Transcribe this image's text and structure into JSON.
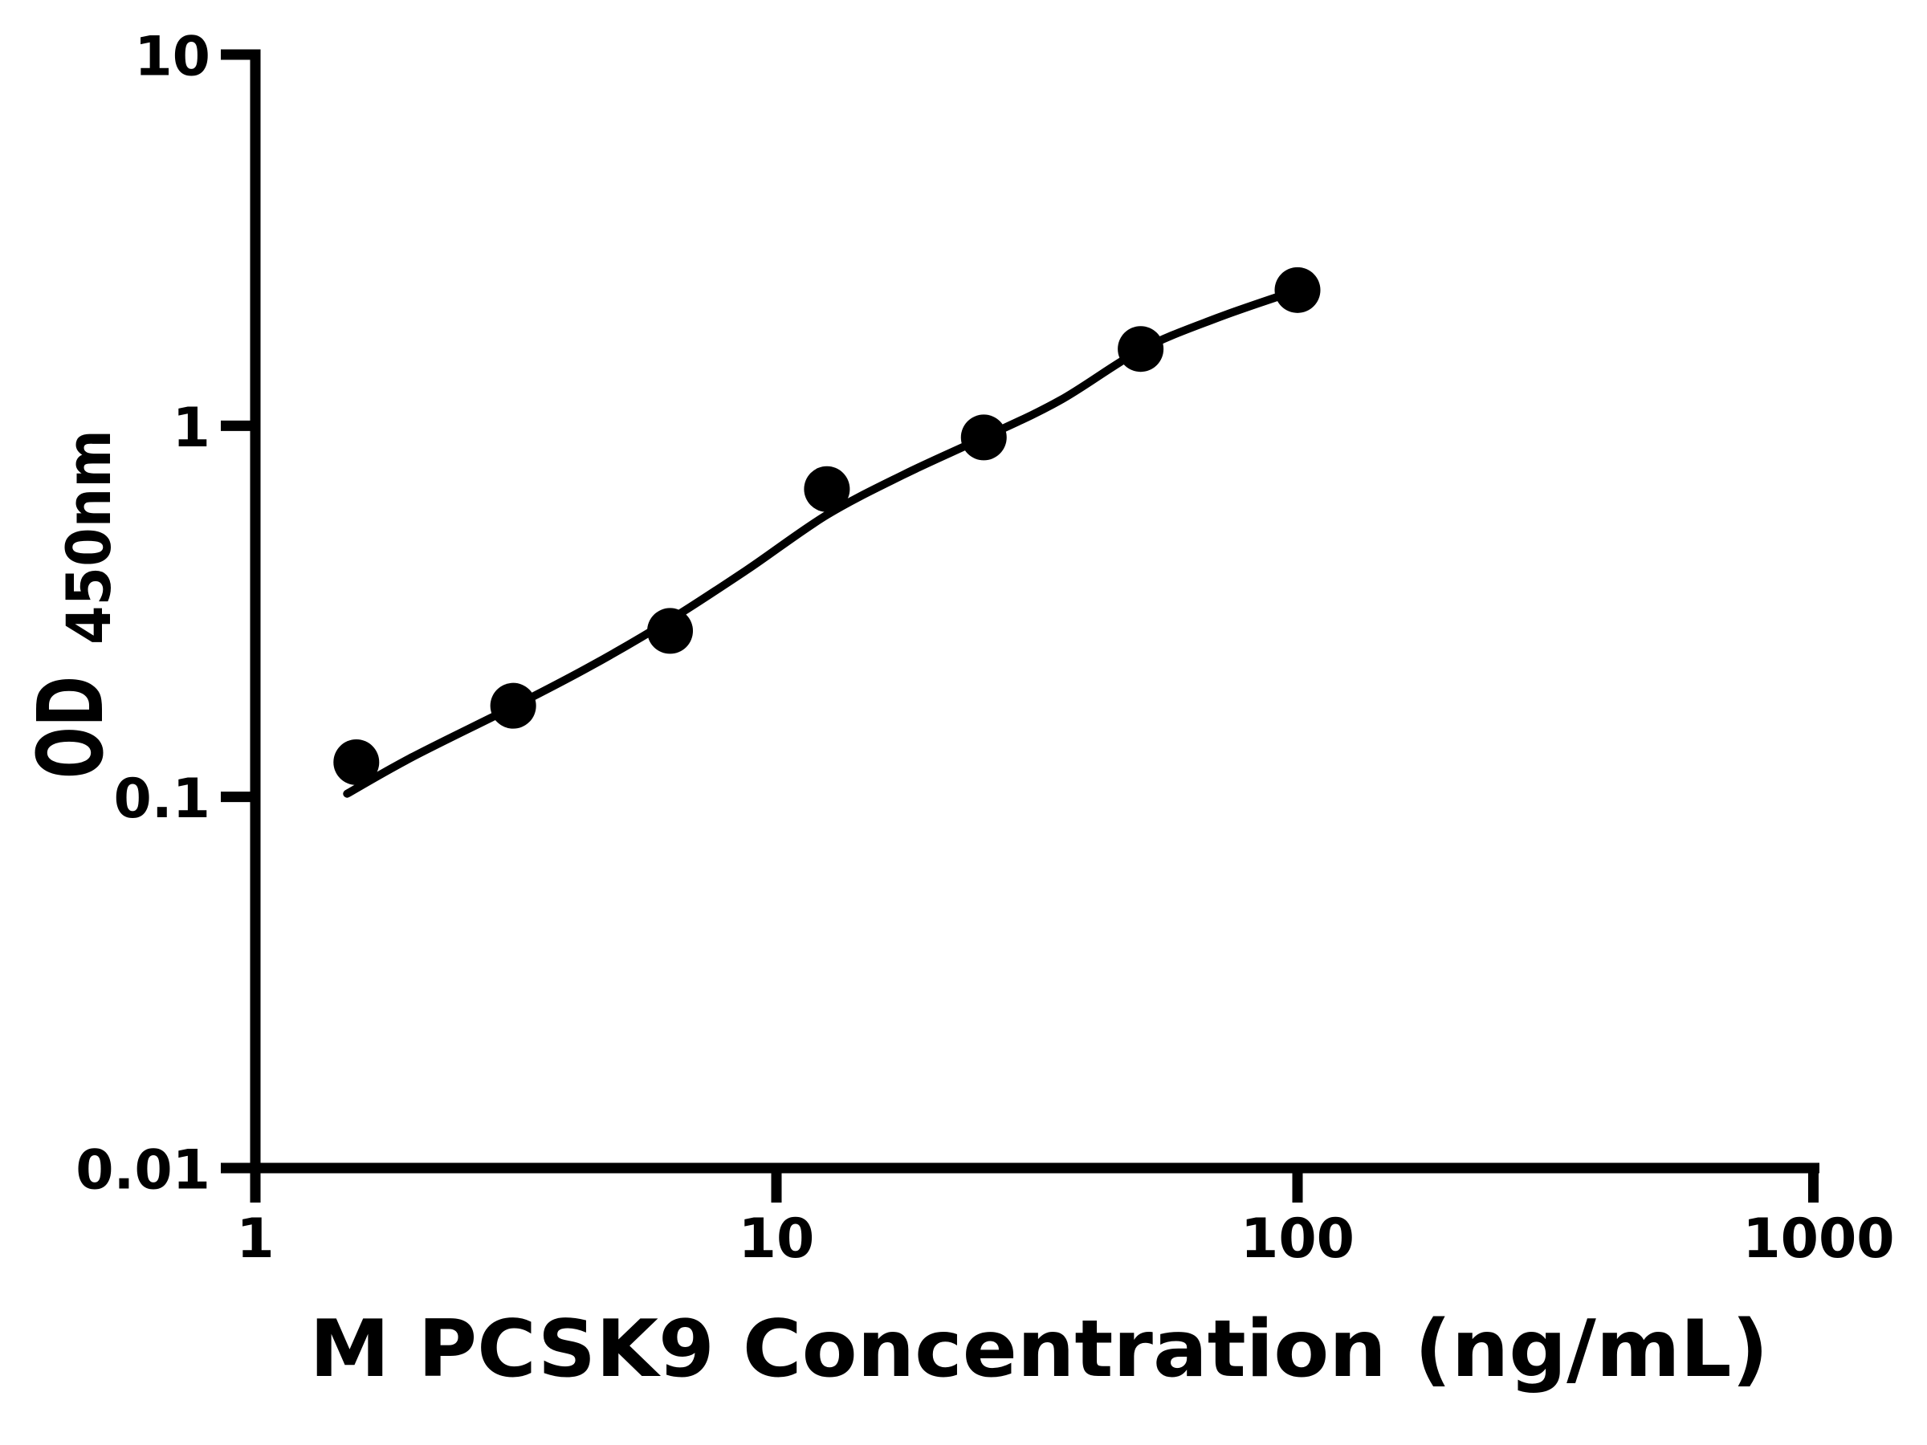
{
  "page": {
    "background": "#ffffff"
  },
  "chart_data": {
    "type": "scatter",
    "subtype": "standard-curve-with-fit-line",
    "title": "",
    "xlabel": "M PCSK9 Concentration (ng/mL)",
    "ylabel_main": "OD",
    "ylabel_sub": "450nm",
    "x_scale": "log10",
    "y_scale": "log10",
    "xlim": [
      1,
      1000
    ],
    "ylim": [
      0.01,
      10
    ],
    "grid": "off",
    "legend": "none",
    "marker": "filled-circle",
    "marker_color": "#000000",
    "line_color": "#000000",
    "axis_color": "#000000",
    "background_color": "#ffffff",
    "x_ticks": [
      {
        "value": 1,
        "label": "1"
      },
      {
        "value": 10,
        "label": "10"
      },
      {
        "value": 100,
        "label": "100"
      },
      {
        "value": 1000,
        "label": "1000"
      }
    ],
    "y_ticks": [
      {
        "value": 0.01,
        "label": "0.01"
      },
      {
        "value": 0.1,
        "label": "0.1"
      },
      {
        "value": 1,
        "label": "1"
      },
      {
        "value": 10,
        "label": "10"
      }
    ],
    "points": [
      {
        "x": 1.5625,
        "y": 0.124
      },
      {
        "x": 3.125,
        "y": 0.176
      },
      {
        "x": 6.25,
        "y": 0.28
      },
      {
        "x": 12.5,
        "y": 0.675
      },
      {
        "x": 25,
        "y": 0.93
      },
      {
        "x": 50,
        "y": 1.61
      },
      {
        "x": 100,
        "y": 2.32
      }
    ],
    "curve_fit": [
      [
        1.5,
        0.102
      ],
      [
        2.0,
        0.128
      ],
      [
        3.125,
        0.175
      ],
      [
        4.4,
        0.225
      ],
      [
        6.25,
        0.3
      ],
      [
        8.8,
        0.41
      ],
      [
        12.5,
        0.575
      ],
      [
        17.6,
        0.74
      ],
      [
        25,
        0.93
      ],
      [
        35,
        1.17
      ],
      [
        50,
        1.6
      ],
      [
        70,
        1.95
      ],
      [
        100,
        2.32
      ]
    ]
  }
}
